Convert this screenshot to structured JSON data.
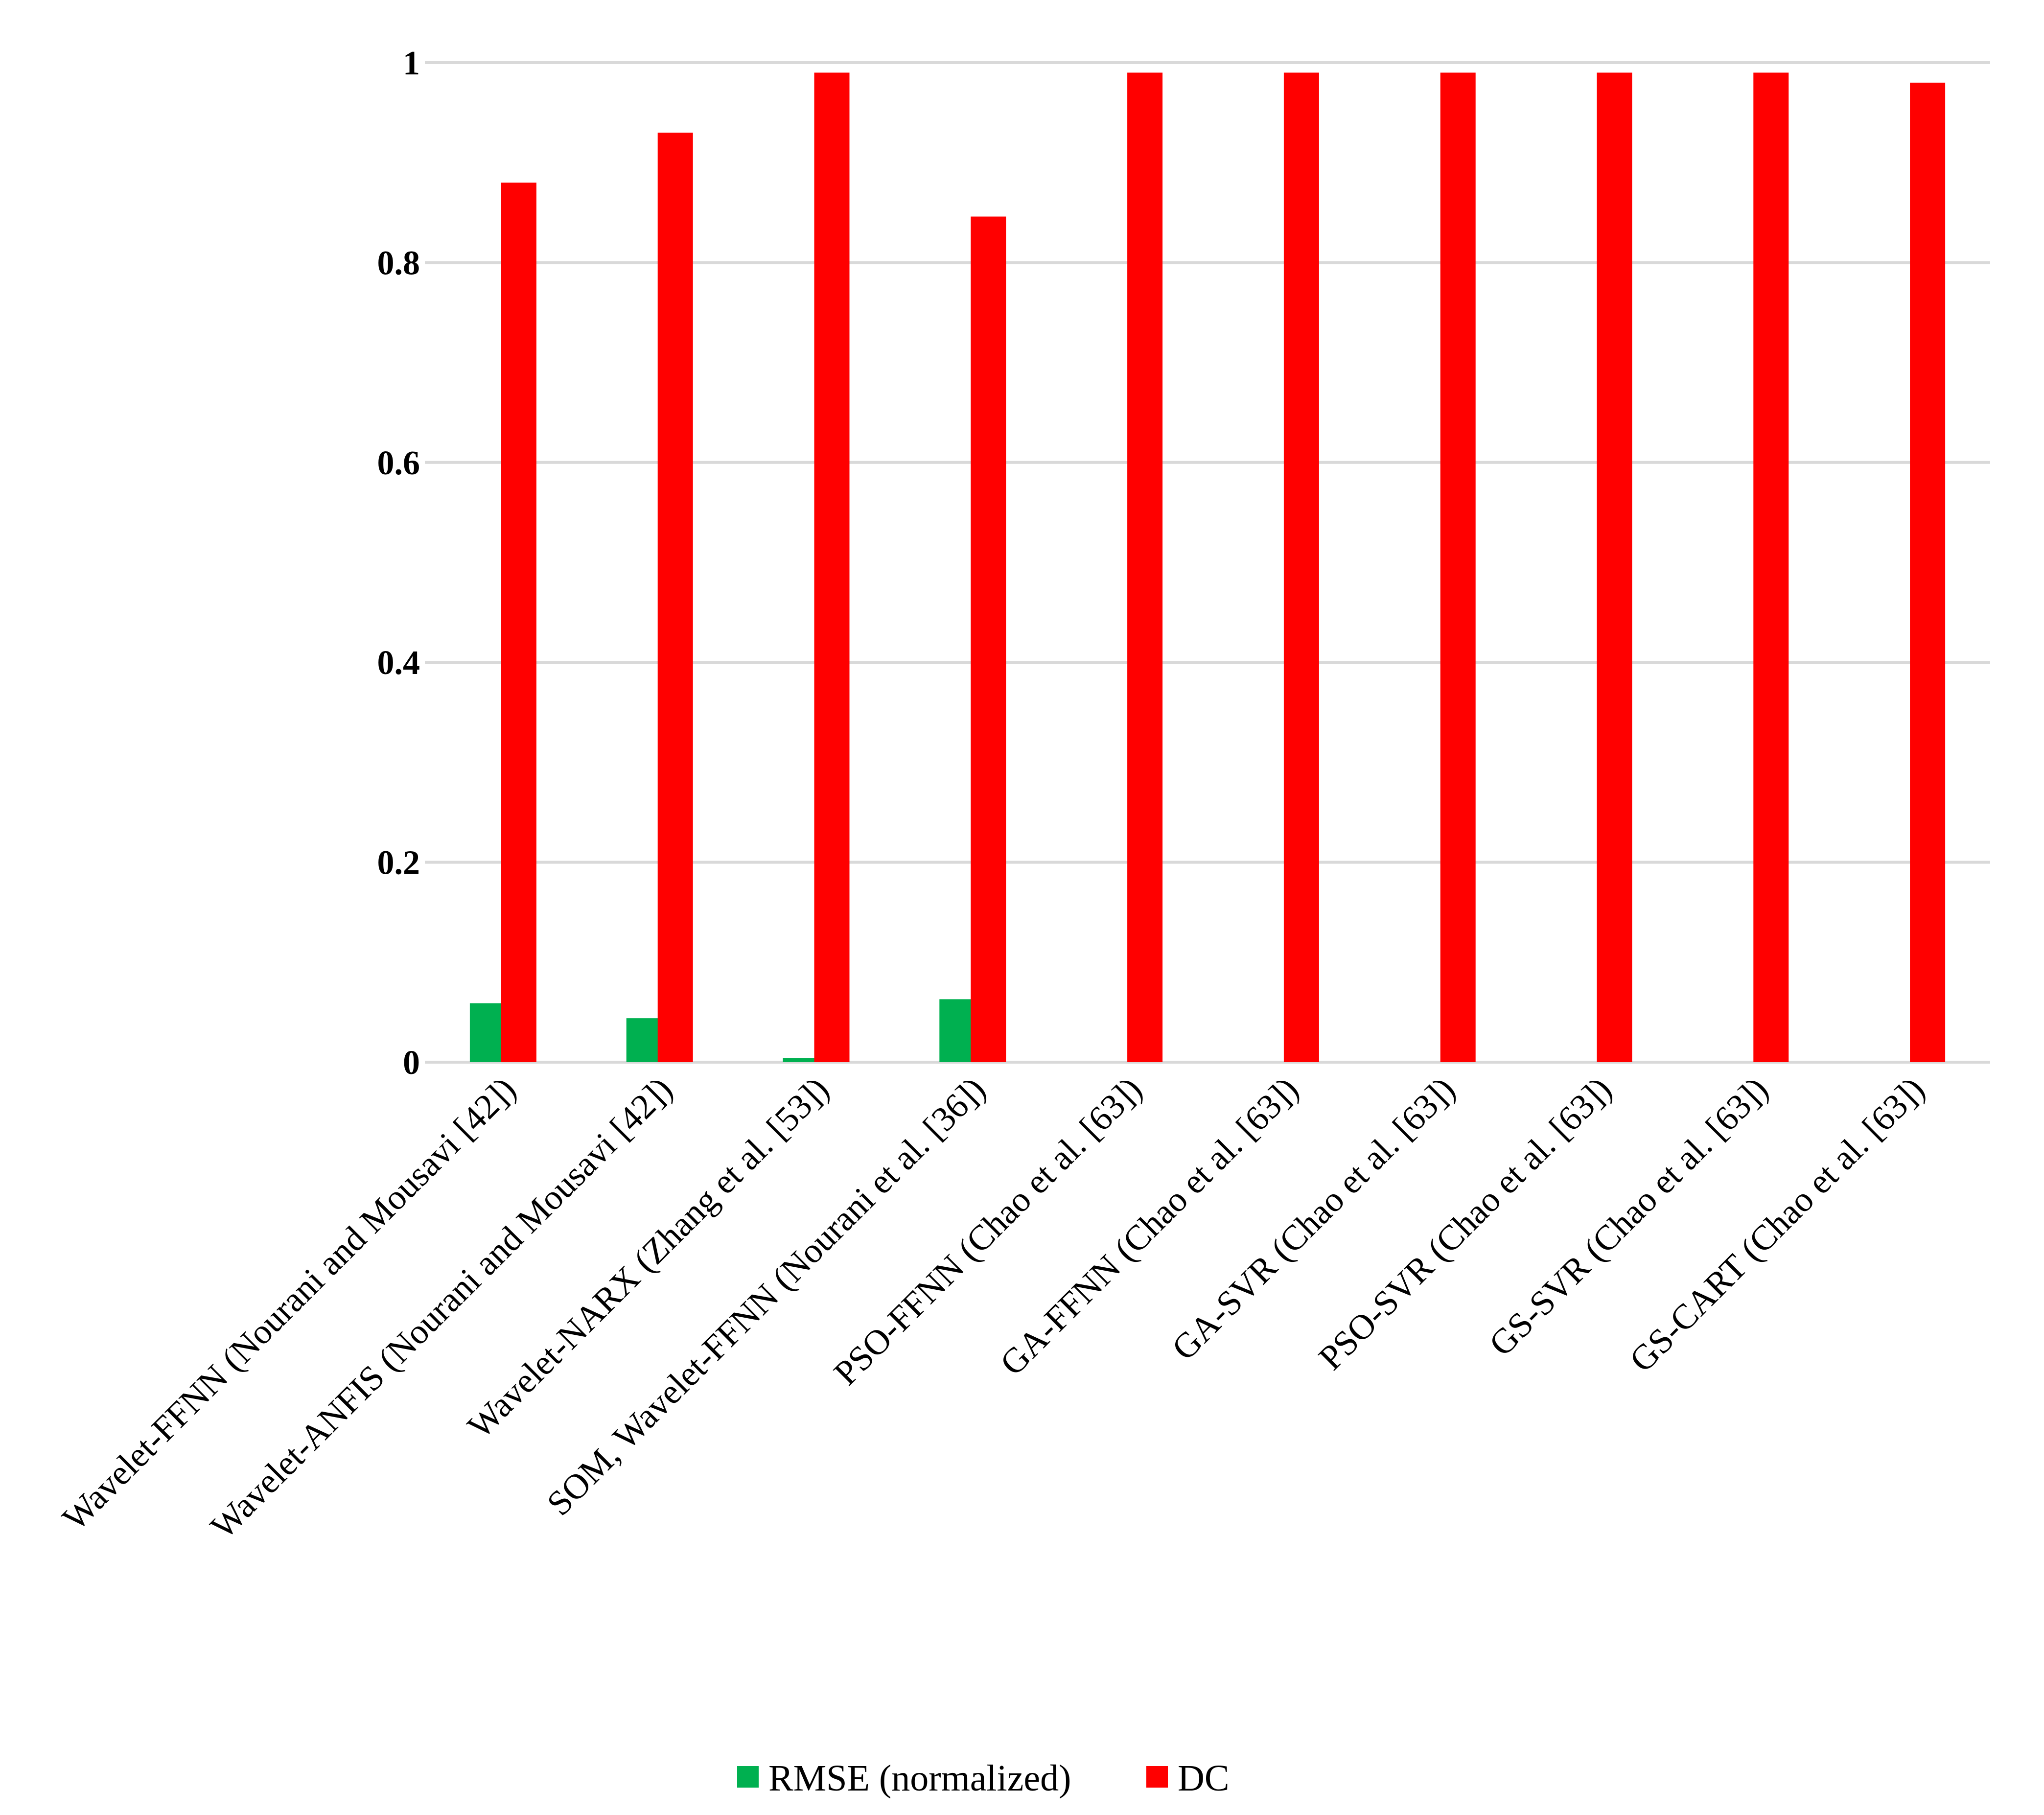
{
  "chart_data": {
    "type": "bar",
    "categories": [
      "Wavelet-FFNN (Nourani and Mousavi [42])",
      "Wavelet-ANFIS (Nourani and Mousavi [42])",
      "Wavelet-NARX (Zhang et al. [53])",
      "SOM, Wavelet-FFNN (Nourani et al. [36])",
      "PSO-FFNN (Chao et al. [63])",
      "GA-FFNN (Chao et al. [63])",
      "GA-SVR (Chao et al. [63])",
      "PSO-SVR (Chao et al. [63])",
      "GS-SVR (Chao et al. [63])",
      "GS-CART (Chao et al. [63])"
    ],
    "series": [
      {
        "name": "RMSE (normalized)",
        "color": "#00b050",
        "values": [
          0.059,
          0.044,
          0.004,
          0.063,
          0,
          0,
          0,
          0,
          0,
          0
        ]
      },
      {
        "name": "DC",
        "color": "#ff0000",
        "values": [
          0.88,
          0.93,
          0.99,
          0.846,
          0.99,
          0.99,
          0.99,
          0.99,
          0.99,
          0.98
        ]
      }
    ],
    "title": "",
    "xlabel": "",
    "ylabel": "",
    "ylim": [
      0,
      1
    ],
    "yticks": [
      0,
      0.2,
      0.4,
      0.6,
      0.8,
      1
    ],
    "ytick_labels": [
      "0",
      "0.2",
      "0.4",
      "0.6",
      "0.8",
      "1"
    ],
    "grid": true,
    "legend_position": "bottom-center",
    "gridline_color": "#d9d9d9"
  }
}
